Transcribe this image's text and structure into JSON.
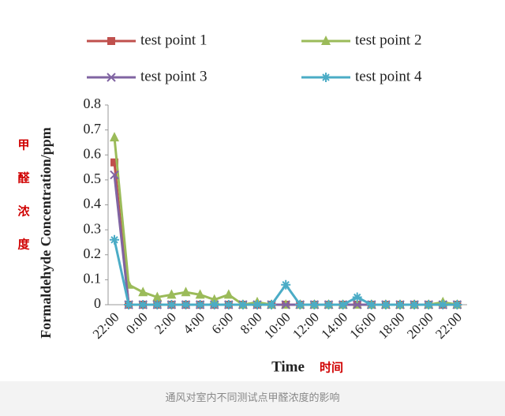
{
  "chart_data": {
    "type": "line",
    "x_label": "Time",
    "y_label": "Formaldehyde Concentration/ppm",
    "annotations": [
      "甲",
      "醛",
      "浓",
      "度",
      "时间"
    ],
    "categories": [
      "22:00",
      null,
      "0:00",
      null,
      "2:00",
      null,
      "4:00",
      null,
      "6:00",
      null,
      "8:00",
      null,
      "10:00",
      null,
      "12:00",
      null,
      "14:00",
      null,
      "16:00",
      null,
      "18:00",
      null,
      "20:00",
      null,
      "22:00"
    ],
    "series": [
      {
        "name": "test point 1",
        "color": "#c0504d",
        "marker": "square",
        "values": [
          0.57,
          0,
          0,
          0,
          0,
          0,
          0,
          0,
          0,
          0,
          0,
          0,
          0,
          0,
          0,
          0,
          0,
          0,
          0,
          0,
          0,
          0,
          0,
          0,
          0
        ]
      },
      {
        "name": "test point 2",
        "color": "#9bbb59",
        "marker": "triangle",
        "values": [
          0.67,
          0.08,
          0.05,
          0.03,
          0.04,
          0.05,
          0.04,
          0.02,
          0.04,
          0,
          0.01,
          0,
          0,
          0,
          0,
          0,
          0,
          0,
          0,
          0,
          0,
          0,
          0,
          0.01,
          0
        ]
      },
      {
        "name": "test point 3",
        "color": "#8064a2",
        "marker": "cross",
        "values": [
          0.52,
          0,
          0,
          0,
          0,
          0,
          0,
          0,
          0,
          0,
          0,
          0,
          0,
          0,
          0,
          0,
          0,
          0,
          0,
          0,
          0,
          0,
          0,
          0,
          0
        ]
      },
      {
        "name": "test point 4",
        "color": "#4bacc6",
        "marker": "star",
        "values": [
          0.26,
          0,
          0,
          0,
          0,
          0,
          0,
          0,
          0,
          0,
          0,
          0,
          0.08,
          0,
          0,
          0,
          0,
          0.03,
          0,
          0,
          0,
          0,
          0,
          0,
          0
        ]
      }
    ],
    "ylim": [
      0,
      0.8
    ],
    "yticks": [
      0,
      0.1,
      0.2,
      0.3,
      0.4,
      0.5,
      0.6,
      0.7,
      0.8
    ],
    "legend": "top"
  },
  "caption": "通风对室内不同测试点甲醛浓度的影响"
}
